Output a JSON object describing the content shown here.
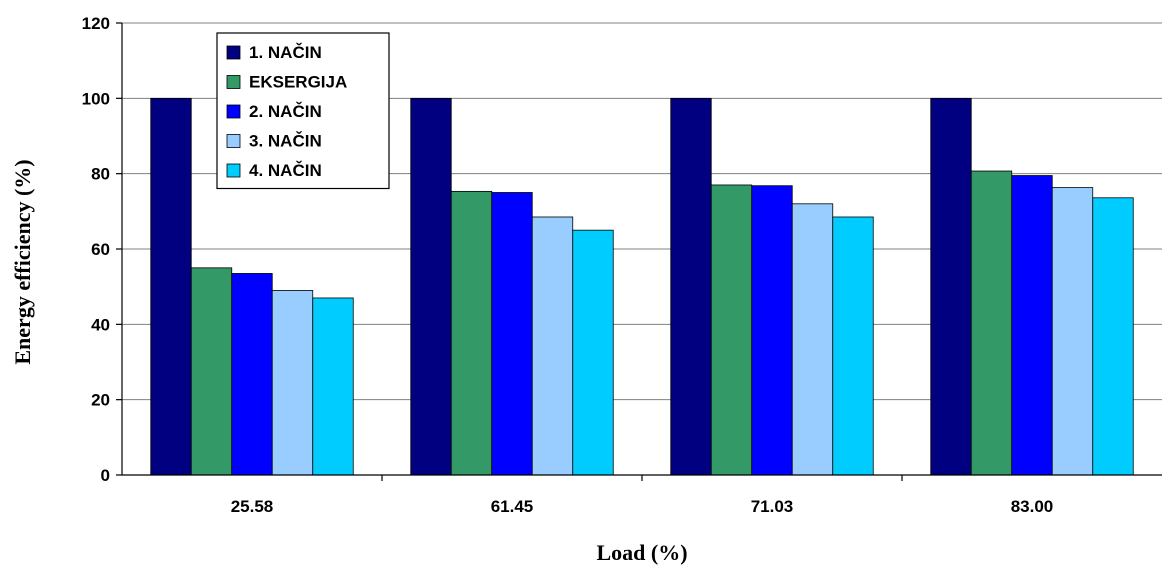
{
  "chart_data": {
    "type": "bar",
    "title": "",
    "xlabel": "Load (%)",
    "ylabel": "Energy efficiency (%)",
    "ylim": [
      0,
      120
    ],
    "yticks": [
      "0",
      "20",
      "40",
      "60",
      "80",
      "100",
      "120"
    ],
    "categories": [
      "25.58",
      "61.45",
      "71.03",
      "83.00"
    ],
    "grid": "horizontal",
    "legend_position": "top-left",
    "series": [
      {
        "name": "1. NAČIN",
        "color": "#000080",
        "values": [
          100,
          100,
          100,
          100
        ]
      },
      {
        "name": "EKSERGIJA",
        "color": "#339966",
        "values": [
          55,
          75.3,
          77,
          80.7
        ]
      },
      {
        "name": "2. NAČIN",
        "color": "#0000FF",
        "values": [
          53.5,
          75,
          76.8,
          79.5
        ]
      },
      {
        "name": "3. NAČIN",
        "color": "#99CCFF",
        "values": [
          49,
          68.5,
          72,
          76.3
        ]
      },
      {
        "name": "4. NAČIN",
        "color": "#00CCFF",
        "values": [
          47,
          65,
          68.5,
          73.6
        ]
      }
    ]
  }
}
